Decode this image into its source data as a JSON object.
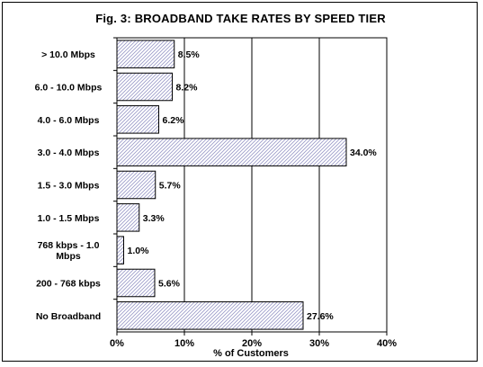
{
  "chart_data": {
    "type": "bar",
    "orientation": "horizontal",
    "title": "Fig. 3:  BROADBAND TAKE RATES BY SPEED TIER",
    "categories": [
      "> 10.0 Mbps",
      "6.0 - 10.0 Mbps",
      "4.0 - 6.0 Mbps",
      "3.0 - 4.0 Mbps",
      "1.5 - 3.0 Mbps",
      "1.0 - 1.5 Mbps",
      "768 kbps - 1.0 Mbps",
      "200 - 768 kbps",
      "No Broadband"
    ],
    "category_lines": [
      [
        "> 10.0 Mbps"
      ],
      [
        "6.0 - 10.0 Mbps"
      ],
      [
        "4.0 - 6.0 Mbps"
      ],
      [
        "3.0 - 4.0 Mbps"
      ],
      [
        "1.5 - 3.0 Mbps"
      ],
      [
        "1.0 - 1.5 Mbps"
      ],
      [
        "768 kbps - 1.0",
        "Mbps"
      ],
      [
        "200 - 768 kbps"
      ],
      [
        "No Broadband"
      ]
    ],
    "values": [
      8.5,
      8.2,
      6.2,
      34.0,
      5.7,
      3.3,
      1.0,
      5.6,
      27.6
    ],
    "value_labels": [
      "8.5%",
      "8.2%",
      "6.2%",
      "34.0%",
      "5.7%",
      "3.3%",
      "1.0%",
      "5.6%",
      "27.6%"
    ],
    "xlabel": "% of Customers",
    "ylabel": "",
    "xlim": [
      0,
      40
    ],
    "xticks": [
      0,
      10,
      20,
      30,
      40
    ],
    "xtick_labels": [
      "0%",
      "10%",
      "20%",
      "30%",
      "40%"
    ],
    "grid": "vertical",
    "legend": "none",
    "colors": {
      "bar_fill": "#ffffff",
      "bar_hatch": "#9a9ac8",
      "bar_edge": "#000000",
      "gridline": "#000000"
    }
  }
}
